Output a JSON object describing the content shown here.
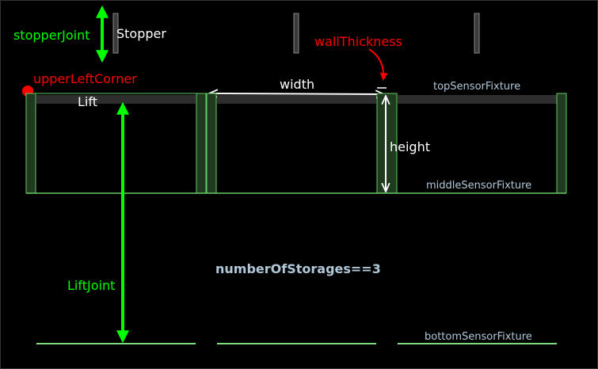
{
  "labels": {
    "stopper_joint": "stopperJoint",
    "stopper": "Stopper",
    "wall_thickness": "wallThickness",
    "upper_left_corner": "upperLeftCorner",
    "width": "width",
    "top_sensor_fixture": "topSensorFixture",
    "lift": "Lift",
    "height": "height",
    "middle_sensor_fixture": "middleSensorFixture",
    "lift_joint": "LiftJoint",
    "number_of_storages": "numberOfStorages==3",
    "bottom_sensor_fixture": "bottomSensorFixture"
  },
  "colors": {
    "background": "#000000",
    "joint_green": "#00ff00",
    "annotation_red": "#ff0000",
    "text_white": "#ffffff",
    "sensor_text": "#b0c8d8",
    "wall_fill": "#1f3a1f",
    "wall_stroke": "#66cc66",
    "stopper_fill": "#3a3a3a",
    "top_bar": "#2e2e2e",
    "bottom_line": "#7ddc7d"
  }
}
